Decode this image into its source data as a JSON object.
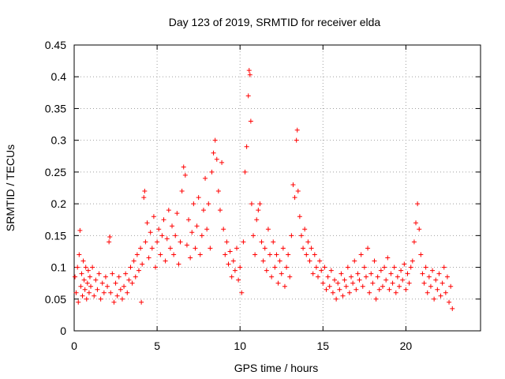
{
  "chart_data": {
    "type": "scatter",
    "title": "Day 123 of 2019, SRMTID for receiver elda",
    "xlabel": "GPS time / hours",
    "ylabel": "SRMTID / TECUs",
    "xlim": [
      0,
      24.5
    ],
    "ylim": [
      0,
      0.45
    ],
    "xticks": [
      0,
      5,
      10,
      15,
      20
    ],
    "xtick_labels": [
      "0",
      "5",
      "10",
      "15",
      "20"
    ],
    "yticks": [
      0,
      0.05,
      0.1,
      0.15,
      0.2,
      0.25,
      0.3,
      0.35,
      0.4,
      0.45
    ],
    "ytick_labels": [
      "0",
      "0.05",
      "0.1",
      "0.15",
      "0.2",
      "0.25",
      "0.3",
      "0.35",
      "0.4",
      "0.45"
    ],
    "grid": true,
    "marker": "+",
    "color": "#ff0000",
    "series": [
      {
        "name": "SRMTID",
        "points": [
          [
            0.05,
            0.085
          ],
          [
            0.12,
            0.06
          ],
          [
            0.2,
            0.1
          ],
          [
            0.25,
            0.045
          ],
          [
            0.3,
            0.12
          ],
          [
            0.35,
            0.158
          ],
          [
            0.4,
            0.07
          ],
          [
            0.45,
            0.09
          ],
          [
            0.5,
            0.055
          ],
          [
            0.55,
            0.11
          ],
          [
            0.6,
            0.08
          ],
          [
            0.65,
            0.065
          ],
          [
            0.7,
            0.1
          ],
          [
            0.75,
            0.05
          ],
          [
            0.8,
            0.075
          ],
          [
            0.85,
            0.095
          ],
          [
            0.9,
            0.06
          ],
          [
            0.95,
            0.085
          ],
          [
            1.0,
            0.07
          ],
          [
            1.1,
            0.1
          ],
          [
            1.2,
            0.055
          ],
          [
            1.3,
            0.08
          ],
          [
            1.4,
            0.065
          ],
          [
            1.5,
            0.09
          ],
          [
            1.6,
            0.05
          ],
          [
            1.7,
            0.075
          ],
          [
            1.8,
            0.06
          ],
          [
            1.9,
            0.085
          ],
          [
            2.0,
            0.07
          ],
          [
            2.1,
            0.14
          ],
          [
            2.15,
            0.148
          ],
          [
            2.2,
            0.06
          ],
          [
            2.3,
            0.09
          ],
          [
            2.4,
            0.045
          ],
          [
            2.5,
            0.075
          ],
          [
            2.6,
            0.055
          ],
          [
            2.7,
            0.085
          ],
          [
            2.8,
            0.065
          ],
          [
            2.9,
            0.05
          ],
          [
            3.0,
            0.07
          ],
          [
            3.1,
            0.09
          ],
          [
            3.2,
            0.06
          ],
          [
            3.3,
            0.08
          ],
          [
            3.4,
            0.1
          ],
          [
            3.5,
            0.075
          ],
          [
            3.6,
            0.11
          ],
          [
            3.7,
            0.085
          ],
          [
            3.8,
            0.12
          ],
          [
            3.9,
            0.095
          ],
          [
            4.0,
            0.13
          ],
          [
            4.05,
            0.045
          ],
          [
            4.1,
            0.105
          ],
          [
            4.2,
            0.21
          ],
          [
            4.25,
            0.22
          ],
          [
            4.3,
            0.14
          ],
          [
            4.4,
            0.17
          ],
          [
            4.5,
            0.115
          ],
          [
            4.6,
            0.155
          ],
          [
            4.7,
            0.13
          ],
          [
            4.8,
            0.18
          ],
          [
            4.9,
            0.1
          ],
          [
            5.0,
            0.14
          ],
          [
            5.1,
            0.16
          ],
          [
            5.2,
            0.12
          ],
          [
            5.3,
            0.15
          ],
          [
            5.4,
            0.175
          ],
          [
            5.5,
            0.11
          ],
          [
            5.6,
            0.145
          ],
          [
            5.7,
            0.19
          ],
          [
            5.8,
            0.13
          ],
          [
            5.9,
            0.165
          ],
          [
            6.0,
            0.12
          ],
          [
            6.1,
            0.15
          ],
          [
            6.2,
            0.185
          ],
          [
            6.3,
            0.105
          ],
          [
            6.4,
            0.14
          ],
          [
            6.5,
            0.22
          ],
          [
            6.6,
            0.258
          ],
          [
            6.7,
            0.245
          ],
          [
            6.8,
            0.135
          ],
          [
            6.9,
            0.175
          ],
          [
            7.0,
            0.115
          ],
          [
            7.1,
            0.155
          ],
          [
            7.2,
            0.2
          ],
          [
            7.3,
            0.13
          ],
          [
            7.4,
            0.165
          ],
          [
            7.5,
            0.21
          ],
          [
            7.6,
            0.12
          ],
          [
            7.7,
            0.15
          ],
          [
            7.8,
            0.19
          ],
          [
            7.9,
            0.24
          ],
          [
            8.0,
            0.16
          ],
          [
            8.1,
            0.2
          ],
          [
            8.2,
            0.13
          ],
          [
            8.3,
            0.25
          ],
          [
            8.4,
            0.28
          ],
          [
            8.5,
            0.3
          ],
          [
            8.6,
            0.27
          ],
          [
            8.7,
            0.22
          ],
          [
            8.8,
            0.19
          ],
          [
            8.9,
            0.265
          ],
          [
            9.0,
            0.16
          ],
          [
            9.1,
            0.12
          ],
          [
            9.2,
            0.14
          ],
          [
            9.3,
            0.105
          ],
          [
            9.4,
            0.125
          ],
          [
            9.5,
            0.085
          ],
          [
            9.6,
            0.11
          ],
          [
            9.7,
            0.095
          ],
          [
            9.8,
            0.13
          ],
          [
            9.9,
            0.08
          ],
          [
            10.0,
            0.1
          ],
          [
            10.1,
            0.06
          ],
          [
            10.2,
            0.14
          ],
          [
            10.3,
            0.25
          ],
          [
            10.4,
            0.29
          ],
          [
            10.5,
            0.37
          ],
          [
            10.55,
            0.41
          ],
          [
            10.6,
            0.403
          ],
          [
            10.65,
            0.33
          ],
          [
            10.7,
            0.2
          ],
          [
            10.8,
            0.15
          ],
          [
            10.9,
            0.12
          ],
          [
            11.0,
            0.175
          ],
          [
            11.1,
            0.19
          ],
          [
            11.2,
            0.2
          ],
          [
            11.3,
            0.14
          ],
          [
            11.4,
            0.11
          ],
          [
            11.5,
            0.13
          ],
          [
            11.6,
            0.095
          ],
          [
            11.7,
            0.16
          ],
          [
            11.8,
            0.12
          ],
          [
            11.9,
            0.085
          ],
          [
            12.0,
            0.14
          ],
          [
            12.1,
            0.1
          ],
          [
            12.2,
            0.12
          ],
          [
            12.3,
            0.075
          ],
          [
            12.4,
            0.11
          ],
          [
            12.5,
            0.09
          ],
          [
            12.6,
            0.13
          ],
          [
            12.7,
            0.07
          ],
          [
            12.8,
            0.1
          ],
          [
            12.9,
            0.12
          ],
          [
            13.0,
            0.085
          ],
          [
            13.1,
            0.15
          ],
          [
            13.2,
            0.23
          ],
          [
            13.3,
            0.21
          ],
          [
            13.4,
            0.3
          ],
          [
            13.45,
            0.316
          ],
          [
            13.5,
            0.22
          ],
          [
            13.6,
            0.18
          ],
          [
            13.7,
            0.15
          ],
          [
            13.8,
            0.13
          ],
          [
            13.9,
            0.16
          ],
          [
            14.0,
            0.12
          ],
          [
            14.1,
            0.14
          ],
          [
            14.2,
            0.11
          ],
          [
            14.3,
            0.13
          ],
          [
            14.4,
            0.09
          ],
          [
            14.5,
            0.12
          ],
          [
            14.6,
            0.1
          ],
          [
            14.7,
            0.085
          ],
          [
            14.8,
            0.11
          ],
          [
            14.9,
            0.095
          ],
          [
            15.0,
            0.075
          ],
          [
            15.1,
            0.1
          ],
          [
            15.2,
            0.065
          ],
          [
            15.3,
            0.085
          ],
          [
            15.4,
            0.07
          ],
          [
            15.5,
            0.095
          ],
          [
            15.6,
            0.06
          ],
          [
            15.7,
            0.08
          ],
          [
            15.8,
            0.05
          ],
          [
            15.9,
            0.075
          ],
          [
            16.0,
            0.065
          ],
          [
            16.1,
            0.09
          ],
          [
            16.2,
            0.055
          ],
          [
            16.3,
            0.08
          ],
          [
            16.4,
            0.07
          ],
          [
            16.5,
            0.1
          ],
          [
            16.6,
            0.06
          ],
          [
            16.7,
            0.085
          ],
          [
            16.8,
            0.075
          ],
          [
            16.9,
            0.11
          ],
          [
            17.0,
            0.065
          ],
          [
            17.1,
            0.09
          ],
          [
            17.2,
            0.08
          ],
          [
            17.3,
            0.12
          ],
          [
            17.4,
            0.07
          ],
          [
            17.5,
            0.1
          ],
          [
            17.6,
            0.085
          ],
          [
            17.7,
            0.13
          ],
          [
            17.8,
            0.06
          ],
          [
            17.9,
            0.09
          ],
          [
            18.0,
            0.075
          ],
          [
            18.1,
            0.11
          ],
          [
            18.2,
            0.05
          ],
          [
            18.3,
            0.085
          ],
          [
            18.4,
            0.065
          ],
          [
            18.5,
            0.095
          ],
          [
            18.6,
            0.07
          ],
          [
            18.7,
            0.1
          ],
          [
            18.8,
            0.08
          ],
          [
            18.9,
            0.115
          ],
          [
            19.0,
            0.065
          ],
          [
            19.1,
            0.09
          ],
          [
            19.2,
            0.075
          ],
          [
            19.3,
            0.1
          ],
          [
            19.4,
            0.06
          ],
          [
            19.5,
            0.085
          ],
          [
            19.6,
            0.07
          ],
          [
            19.7,
            0.095
          ],
          [
            19.8,
            0.08
          ],
          [
            19.9,
            0.105
          ],
          [
            20.0,
            0.065
          ],
          [
            20.1,
            0.09
          ],
          [
            20.2,
            0.075
          ],
          [
            20.3,
            0.1
          ],
          [
            20.4,
            0.11
          ],
          [
            20.5,
            0.14
          ],
          [
            20.6,
            0.17
          ],
          [
            20.7,
            0.2
          ],
          [
            20.8,
            0.16
          ],
          [
            20.9,
            0.12
          ],
          [
            21.0,
            0.09
          ],
          [
            21.1,
            0.075
          ],
          [
            21.2,
            0.1
          ],
          [
            21.3,
            0.06
          ],
          [
            21.4,
            0.085
          ],
          [
            21.5,
            0.07
          ],
          [
            21.6,
            0.095
          ],
          [
            21.7,
            0.05
          ],
          [
            21.8,
            0.08
          ],
          [
            21.9,
            0.065
          ],
          [
            22.0,
            0.09
          ],
          [
            22.1,
            0.055
          ],
          [
            22.2,
            0.075
          ],
          [
            22.3,
            0.1
          ],
          [
            22.4,
            0.06
          ],
          [
            22.5,
            0.085
          ],
          [
            22.6,
            0.045
          ],
          [
            22.7,
            0.07
          ],
          [
            22.8,
            0.035
          ]
        ]
      }
    ]
  }
}
